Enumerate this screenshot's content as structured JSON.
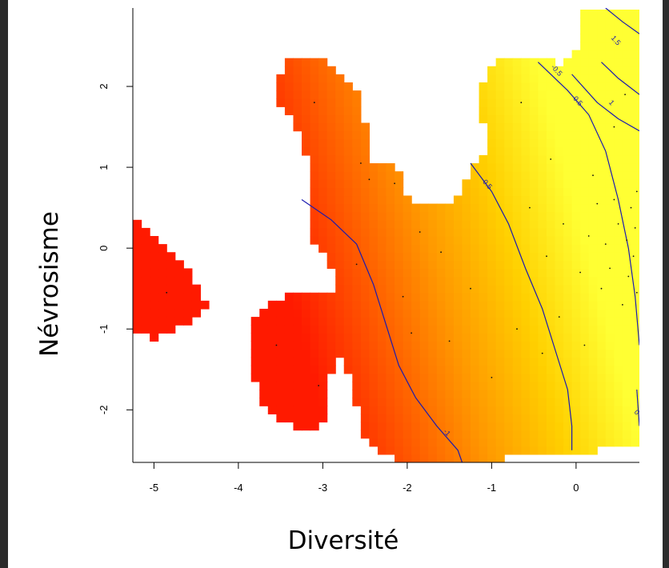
{
  "chart_data": {
    "type": "heatmap",
    "title": "",
    "xlabel": "Diversité",
    "ylabel": "Névrosisme",
    "xlim": [
      -5.25,
      0.75
    ],
    "ylim": [
      -2.65,
      2.97
    ],
    "x_ticks": [
      -5,
      -4,
      -3,
      -2,
      -1,
      0
    ],
    "y_ticks": [
      -2,
      -1,
      0,
      1,
      2
    ],
    "grid": false,
    "legend": "none",
    "colormap": [
      "#ff1a00",
      "#ff5a00",
      "#ff9a00",
      "#ffd000",
      "#ffff33"
    ],
    "cell_size": 0.1,
    "value_model": {
      "description_free": true,
      "intercept": 0.85,
      "x_coef": 1.15,
      "y_coef": 0.3
    },
    "regions": [
      {
        "name": "",
        "polygon": [
          [
            -5.25,
            0.45
          ],
          [
            -5.0,
            0.2
          ],
          [
            -4.85,
            0.05
          ],
          [
            -4.7,
            -0.15
          ],
          [
            -4.55,
            -0.35
          ],
          [
            -4.45,
            -0.55
          ],
          [
            -4.35,
            -0.75
          ],
          [
            -4.5,
            -0.85
          ],
          [
            -4.75,
            -1.0
          ],
          [
            -5.0,
            -1.1
          ],
          [
            -5.25,
            -1.0
          ]
        ]
      },
      {
        "name": "",
        "polygon": [
          [
            -3.55,
            2.1
          ],
          [
            -3.45,
            2.3
          ],
          [
            -2.95,
            2.35
          ],
          [
            -2.8,
            2.15
          ],
          [
            -2.55,
            1.95
          ],
          [
            -2.5,
            1.5
          ],
          [
            -2.45,
            1.1
          ],
          [
            -2.2,
            1.1
          ],
          [
            -2.1,
            0.95
          ],
          [
            -2.0,
            0.6
          ],
          [
            -1.7,
            0.55
          ],
          [
            -1.55,
            0.5
          ],
          [
            -1.35,
            0.75
          ],
          [
            -1.25,
            1.05
          ],
          [
            -1.0,
            1.25
          ],
          [
            -1.1,
            1.5
          ],
          [
            -1.15,
            1.9
          ],
          [
            -1.0,
            2.3
          ],
          [
            -0.5,
            2.35
          ],
          [
            -0.2,
            2.3
          ],
          [
            0.05,
            2.55
          ],
          [
            0.0,
            2.95
          ],
          [
            0.75,
            2.97
          ],
          [
            0.75,
            -2.4
          ],
          [
            0.45,
            -2.4
          ],
          [
            0.2,
            -2.55
          ],
          [
            -0.3,
            -2.55
          ],
          [
            -0.6,
            -2.55
          ],
          [
            -0.9,
            -2.6
          ],
          [
            -1.15,
            -2.6
          ],
          [
            -1.45,
            -2.65
          ],
          [
            -2.1,
            -2.65
          ],
          [
            -2.35,
            -2.5
          ],
          [
            -2.55,
            -2.3
          ],
          [
            -2.65,
            -1.6
          ],
          [
            -2.8,
            -1.4
          ],
          [
            -2.9,
            -1.35
          ],
          [
            -2.9,
            -1.55
          ],
          [
            -2.95,
            -2.1
          ],
          [
            -3.05,
            -2.25
          ],
          [
            -3.25,
            -2.25
          ],
          [
            -3.5,
            -2.15
          ],
          [
            -3.75,
            -1.9
          ],
          [
            -3.85,
            -1.4
          ],
          [
            -3.9,
            -0.95
          ],
          [
            -3.75,
            -0.75
          ],
          [
            -3.45,
            -0.6
          ],
          [
            -3.2,
            -0.55
          ],
          [
            -2.95,
            -0.6
          ],
          [
            -2.85,
            -0.55
          ],
          [
            -2.85,
            -0.3
          ],
          [
            -3.1,
            0.05
          ],
          [
            -3.2,
            0.5
          ],
          [
            -3.1,
            0.75
          ],
          [
            -3.15,
            0.95
          ],
          [
            -3.25,
            1.25
          ],
          [
            -3.35,
            1.55
          ],
          [
            -3.55,
            1.75
          ]
        ]
      }
    ],
    "contours": [
      {
        "label": "-1",
        "points": [
          [
            -3.25,
            0.6
          ],
          [
            -2.9,
            0.35
          ],
          [
            -2.6,
            0.05
          ],
          [
            -2.4,
            -0.45
          ],
          [
            -2.25,
            -0.95
          ],
          [
            -2.1,
            -1.45
          ],
          [
            -1.9,
            -1.85
          ],
          [
            -1.65,
            -2.2
          ],
          [
            -1.4,
            -2.5
          ],
          [
            -1.35,
            -2.65
          ]
        ]
      },
      {
        "label": "-0.5",
        "points": [
          [
            -1.25,
            1.05
          ],
          [
            -1.0,
            0.7
          ],
          [
            -0.8,
            0.3
          ],
          [
            -0.6,
            -0.25
          ],
          [
            -0.4,
            -0.75
          ],
          [
            -0.25,
            -1.25
          ],
          [
            -0.1,
            -1.75
          ],
          [
            -0.05,
            -2.2
          ],
          [
            -0.05,
            -2.5
          ]
        ]
      },
      {
        "label": "-0.5",
        "points": [
          [
            -0.45,
            2.3
          ],
          [
            -0.1,
            1.95
          ],
          [
            0.15,
            1.65
          ],
          [
            0.35,
            1.2
          ],
          [
            0.5,
            0.6
          ],
          [
            0.62,
            0.0
          ],
          [
            0.7,
            -0.6
          ],
          [
            0.75,
            -1.2
          ]
        ]
      },
      {
        "label": "0.5",
        "points": [
          [
            -0.05,
            2.15
          ],
          [
            0.25,
            1.8
          ],
          [
            0.5,
            1.6
          ],
          [
            0.75,
            1.45
          ]
        ]
      },
      {
        "label": "1",
        "points": [
          [
            0.3,
            2.3
          ],
          [
            0.5,
            2.1
          ],
          [
            0.75,
            1.9
          ]
        ]
      },
      {
        "label": "1.5",
        "points": [
          [
            0.35,
            2.97
          ],
          [
            0.55,
            2.8
          ],
          [
            0.75,
            2.65
          ]
        ]
      },
      {
        "label": "0",
        "points": [
          [
            0.72,
            -1.75
          ],
          [
            0.75,
            -2.2
          ]
        ]
      }
    ],
    "contour_labels": [
      {
        "text": "-1",
        "x": -1.55,
        "y": -2.3
      },
      {
        "text": "-0.5",
        "x": -1.08,
        "y": 0.78
      },
      {
        "text": "-0.5",
        "x": -0.25,
        "y": 2.18
      },
      {
        "text": "0.5",
        "x": 0.0,
        "y": 1.8
      },
      {
        "text": "1",
        "x": 0.4,
        "y": 1.78
      },
      {
        "text": "1.5",
        "x": 0.45,
        "y": 2.55
      },
      {
        "text": "0",
        "x": 0.7,
        "y": -2.05
      }
    ],
    "points": [
      [
        -3.1,
        1.8
      ],
      [
        -2.55,
        1.05
      ],
      [
        -2.45,
        0.85
      ],
      [
        -2.15,
        0.8
      ],
      [
        -2.05,
        -0.6
      ],
      [
        -1.95,
        -1.05
      ],
      [
        -1.6,
        -0.05
      ],
      [
        -1.5,
        -1.15
      ],
      [
        -1.25,
        -0.5
      ],
      [
        -1.0,
        -1.6
      ],
      [
        -0.7,
        -1.0
      ],
      [
        -0.55,
        0.5
      ],
      [
        -0.35,
        -0.1
      ],
      [
        -0.15,
        0.3
      ],
      [
        0.05,
        -0.3
      ],
      [
        0.15,
        0.15
      ],
      [
        0.25,
        0.55
      ],
      [
        0.3,
        -0.5
      ],
      [
        0.35,
        0.05
      ],
      [
        0.4,
        -0.25
      ],
      [
        0.45,
        0.6
      ],
      [
        0.5,
        0.3
      ],
      [
        0.55,
        -0.7
      ],
      [
        0.6,
        0.1
      ],
      [
        0.62,
        -0.35
      ],
      [
        0.65,
        0.5
      ],
      [
        0.68,
        -0.1
      ],
      [
        0.7,
        0.25
      ],
      [
        0.72,
        -0.55
      ],
      [
        0.72,
        0.7
      ],
      [
        -0.4,
        -1.3
      ],
      [
        -0.2,
        -0.85
      ],
      [
        0.1,
        -1.2
      ],
      [
        -1.85,
        0.2
      ],
      [
        -2.6,
        -0.2
      ],
      [
        -3.55,
        -1.2
      ],
      [
        -3.05,
        -1.7
      ],
      [
        -4.85,
        -0.55
      ],
      [
        0.2,
        0.9
      ],
      [
        0.45,
        1.5
      ],
      [
        0.58,
        1.9
      ],
      [
        -0.65,
        1.8
      ],
      [
        -0.3,
        1.1
      ]
    ]
  }
}
